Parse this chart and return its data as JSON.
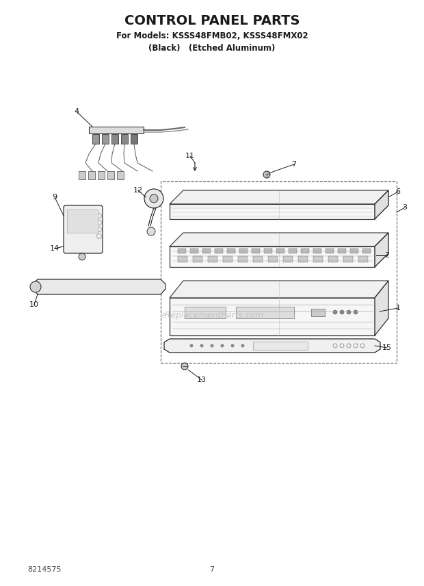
{
  "title": "CONTROL PANEL PARTS",
  "subtitle1": "For Models: KSSS48FMB02, KSSS48FMX02",
  "subtitle2": "(Black)   (Etched Aluminum)",
  "doc_number": "8214575",
  "page_number": "7",
  "watermark": "eReplacementParts.com",
  "bg_color": "#ffffff",
  "lc": "#1a1a1a"
}
